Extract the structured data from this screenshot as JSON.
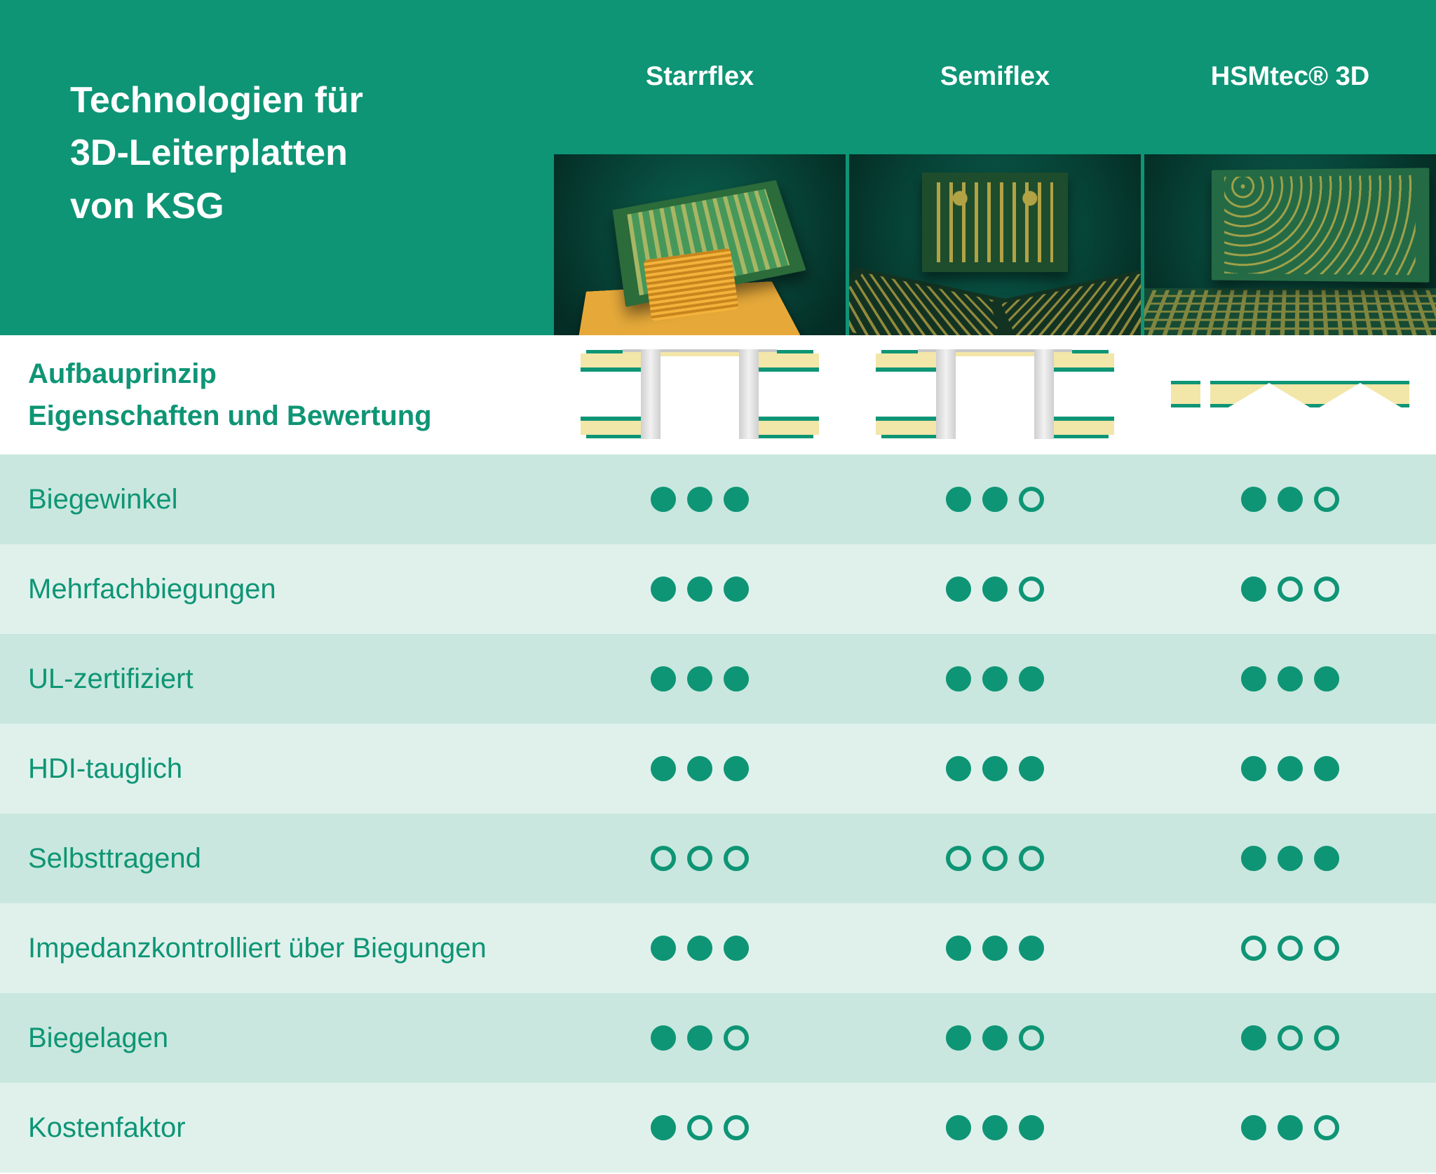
{
  "colors": {
    "brand": "#0e9575",
    "row_alt_a": "#c9e7de",
    "row_alt_b": "#e0f1ec",
    "header_text": "#ffffff",
    "diagram_fill": "#f2e6a8",
    "diagram_metal": "#cfcfcf"
  },
  "header": {
    "title_line1": "Technologien für",
    "title_line2": "3D-Leiterplatten",
    "title_line3": "von KSG",
    "columns": [
      {
        "label": "Starrflex",
        "diagram_type": "a"
      },
      {
        "label": "Semiflex",
        "diagram_type": "a"
      },
      {
        "label": "HSMtec® 3D",
        "diagram_type": "b"
      }
    ]
  },
  "subheader": {
    "line1": "Aufbauprinzip",
    "line2": "Eigenschaften und Bewertung"
  },
  "rating": {
    "max": 3,
    "filled_icon": "filled-dot",
    "empty_icon": "empty-dot"
  },
  "rows": [
    {
      "label": "Biegewinkel",
      "scores": [
        3,
        2,
        2
      ]
    },
    {
      "label": "Mehrfachbiegungen",
      "scores": [
        3,
        2,
        1
      ]
    },
    {
      "label": "UL-zertifiziert",
      "scores": [
        3,
        3,
        3
      ]
    },
    {
      "label": "HDI-tauglich",
      "scores": [
        3,
        3,
        3
      ]
    },
    {
      "label": "Selbsttragend",
      "scores": [
        0,
        0,
        3
      ]
    },
    {
      "label": "Impedanzkontrolliert über Biegungen",
      "scores": [
        3,
        3,
        0
      ]
    },
    {
      "label": "Biegelagen",
      "scores": [
        2,
        2,
        1
      ]
    },
    {
      "label": "Kostenfaktor",
      "scores": [
        1,
        3,
        2
      ]
    }
  ]
}
